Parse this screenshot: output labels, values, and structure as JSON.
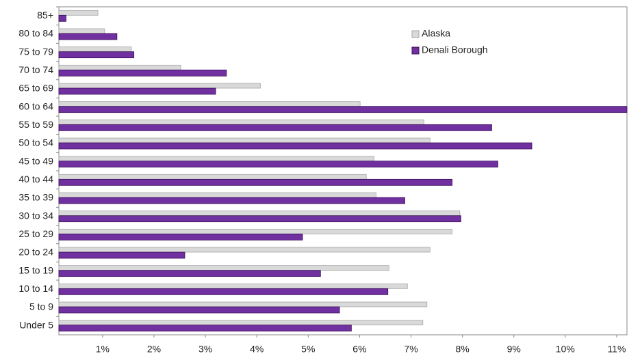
{
  "chart_data": {
    "type": "bar",
    "orientation": "horizontal",
    "categories": [
      "85+",
      "80 to 84",
      "75 to 79",
      "70 to 74",
      "65 to 69",
      "60 to 64",
      "55 to 59",
      "50 to 54",
      "45 to 49",
      "40 to 44",
      "35 to 39",
      "30 to 34",
      "25 to 29",
      "20 to 24",
      "15 to 19",
      "10 to 14",
      "5 to 9",
      "Under 5"
    ],
    "series": [
      {
        "name": "Alaska",
        "color": "#d9d9d9",
        "values": [
          0.91,
          1.04,
          1.56,
          2.52,
          4.07,
          6.01,
          7.25,
          7.37,
          6.28,
          6.13,
          6.32,
          7.95,
          7.8,
          7.37,
          6.57,
          6.93,
          7.31,
          7.23
        ]
      },
      {
        "name": "Denali Borough",
        "color": "#7030a0",
        "values": [
          0.29,
          1.28,
          1.61,
          3.41,
          3.2,
          11.2,
          8.57,
          9.35,
          8.69,
          7.8,
          6.88,
          7.97,
          4.89,
          2.6,
          5.24,
          6.55,
          5.61,
          5.84
        ]
      }
    ],
    "xlim": [
      0.15,
      11.2
    ],
    "xticks": [
      {
        "value": 1,
        "label": "1%"
      },
      {
        "value": 2,
        "label": "2%"
      },
      {
        "value": 3,
        "label": "3%"
      },
      {
        "value": 4,
        "label": "4%"
      },
      {
        "value": 5,
        "label": "5%"
      },
      {
        "value": 6,
        "label": "6%"
      },
      {
        "value": 7,
        "label": "7%"
      },
      {
        "value": 8,
        "label": "8%"
      },
      {
        "value": 9,
        "label": "9%"
      },
      {
        "value": 10,
        "label": "10%"
      },
      {
        "value": 11,
        "label": "11%"
      }
    ],
    "legend": "upper right"
  }
}
